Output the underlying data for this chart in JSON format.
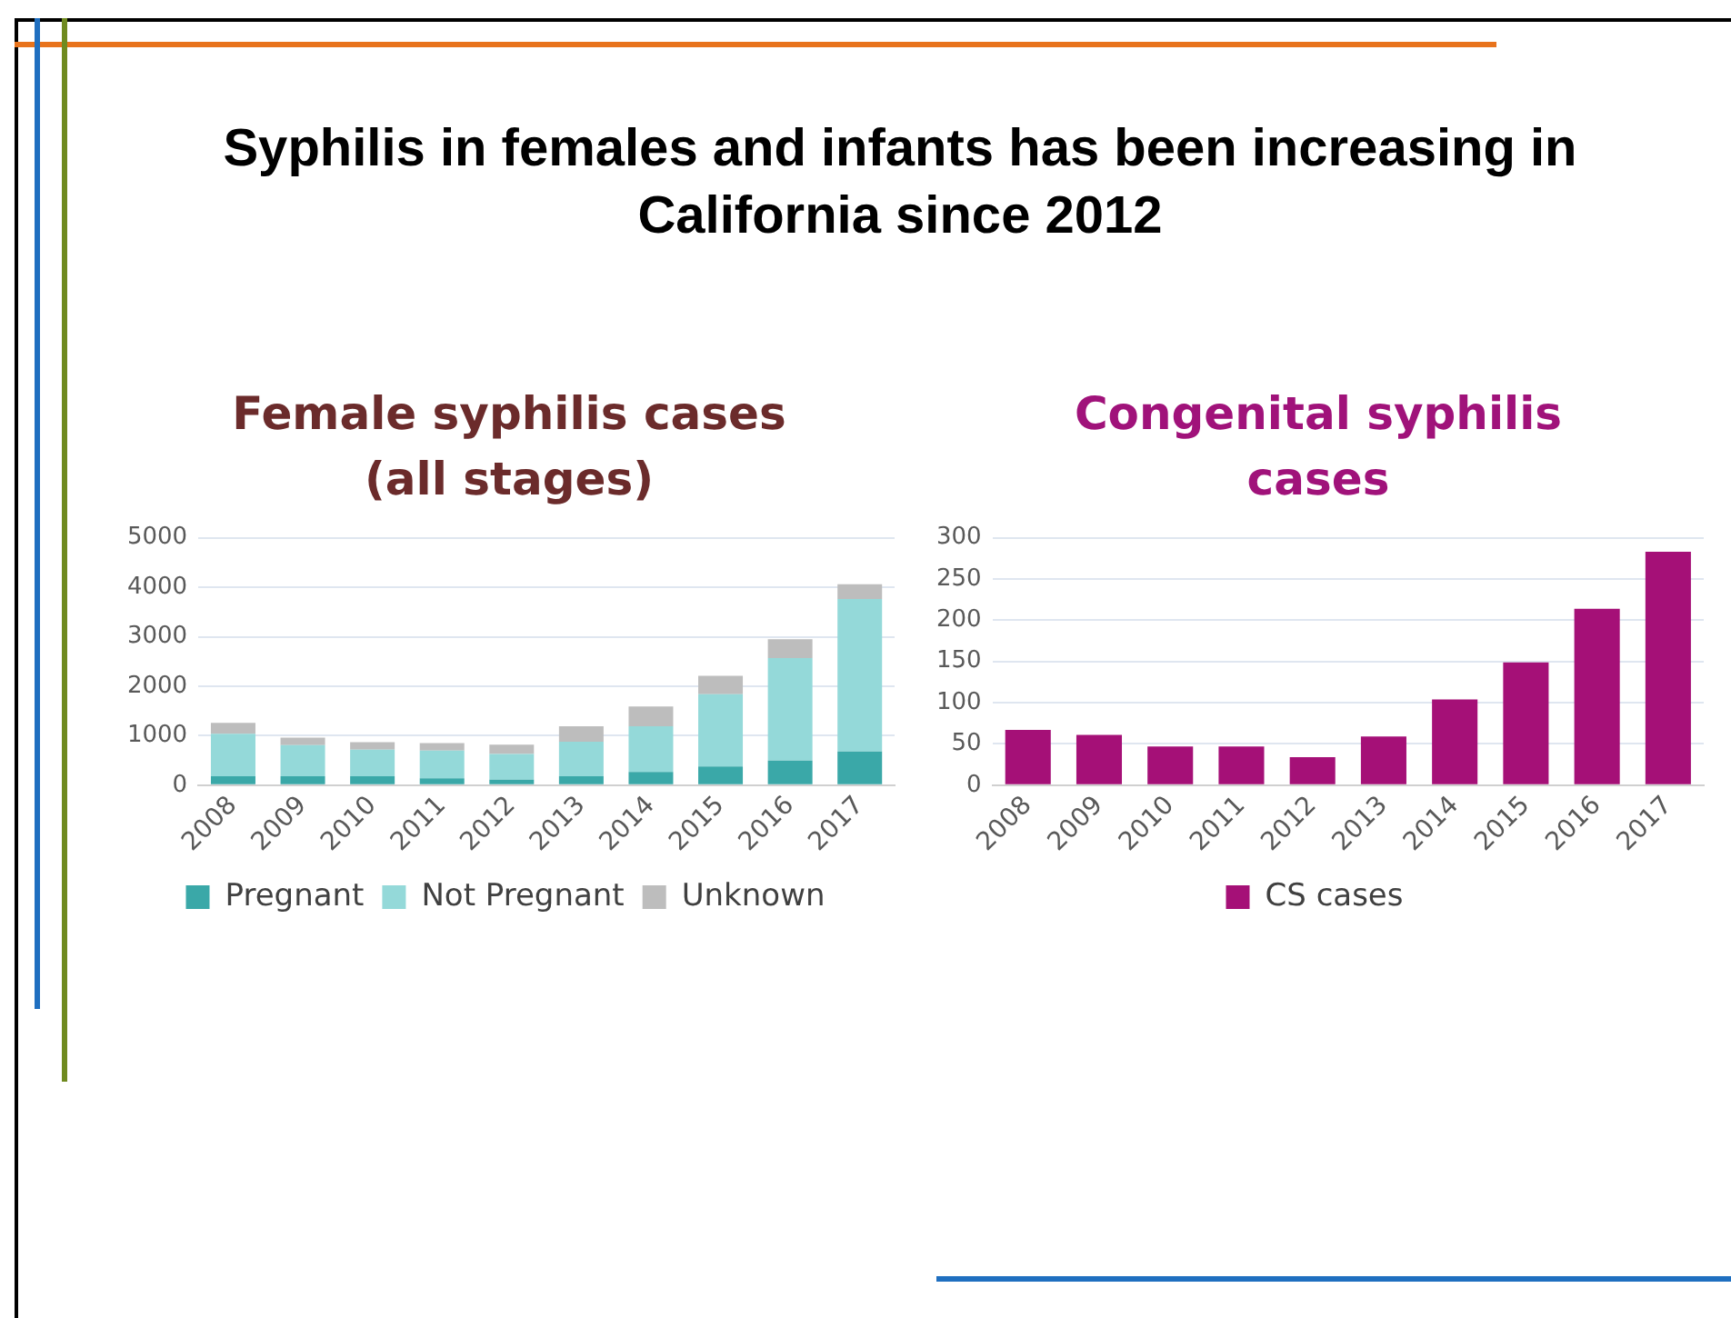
{
  "chart_data": [
    {
      "type": "other",
      "title": "Syphilis in females and infants has been increasing in California since 2012"
    },
    {
      "type": "bar",
      "title": "Female syphilis cases (all stages)",
      "categories": [
        "2008",
        "2009",
        "2010",
        "2011",
        "2012",
        "2013",
        "2014",
        "2015",
        "2016",
        "2017"
      ],
      "stacked": true,
      "series": [
        {
          "name": "Pregnant",
          "color": "#3aa8a8",
          "values": [
            180,
            180,
            180,
            140,
            110,
            180,
            270,
            380,
            500,
            680
          ]
        },
        {
          "name": "Not Pregnant",
          "color": "#94d9d9",
          "values": [
            860,
            630,
            540,
            560,
            520,
            700,
            920,
            1460,
            2070,
            3080
          ]
        },
        {
          "name": "Unknown",
          "color": "#bdbdbd",
          "values": [
            220,
            150,
            150,
            150,
            190,
            310,
            400,
            370,
            380,
            300
          ]
        }
      ],
      "ylim": [
        0,
        5000
      ],
      "yticks": [
        0,
        1000,
        2000,
        3000,
        4000,
        5000
      ],
      "grid": "y",
      "legend": "bottom"
    },
    {
      "type": "bar",
      "title": "Congenital syphilis cases",
      "categories": [
        "2008",
        "2009",
        "2010",
        "2011",
        "2012",
        "2013",
        "2014",
        "2015",
        "2016",
        "2017"
      ],
      "series": [
        {
          "name": "CS cases",
          "color": "#a51077",
          "values": [
            67,
            61,
            47,
            47,
            34,
            59,
            104,
            149,
            214,
            283
          ]
        }
      ],
      "ylim": [
        0,
        300
      ],
      "yticks": [
        0,
        50,
        100,
        150,
        200,
        250,
        300
      ],
      "grid": "y",
      "legend": "bottom"
    }
  ]
}
